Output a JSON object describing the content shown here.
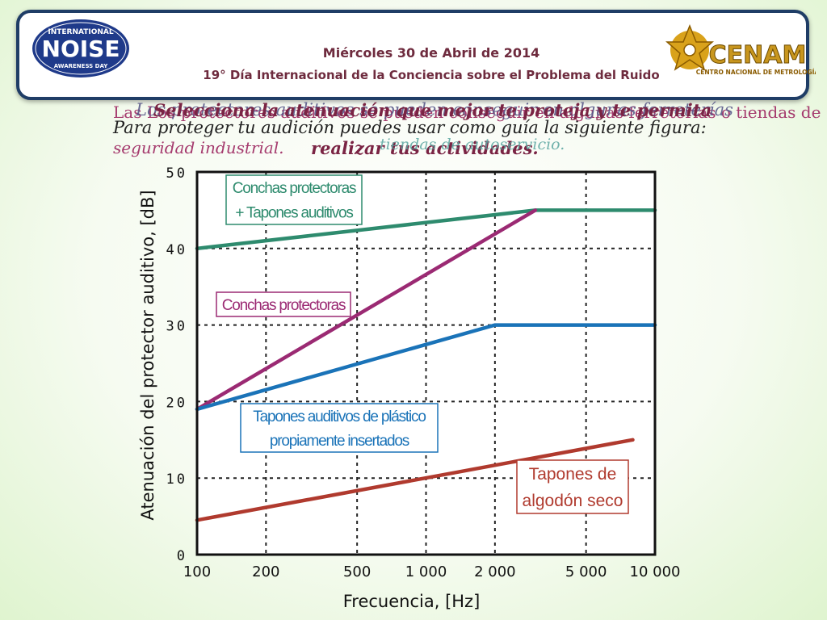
{
  "header": {
    "date": "Miércoles 30 de Abril de 2014",
    "event": "19° Día Internacional de la Conciencia sobre el Problema del Ruido",
    "left_logo": {
      "icon": "noise-awareness-day-logo",
      "lines": [
        "INTERNATIONAL",
        "NOISE",
        "AWARENESS DAY"
      ]
    },
    "right_logo": {
      "icon": "cenam-logo",
      "name": "CENAM",
      "subtitle": "CENTRO NACIONAL DE METROLOGÍA"
    }
  },
  "overlapping_text": {
    "l1": "Las Los protectores auditivos se pueden conseguir en algunas ferreterías o tiendas de",
    "l2": "Los protectores auditivos se pueden conseguir en algunas ferreterías",
    "l3": "Selecciona la atenuación que mejor te proteja y te permita",
    "l4": "Para proteger tu audición puedes usar como guía la siguiente figura:",
    "l5": "seguridad industrial.",
    "l6": "realizar tus actividades.",
    "l7": "tiendas de autoservicio."
  },
  "chart_data": {
    "type": "line",
    "x_scale": "log",
    "xlabel": "Frecuencia, [Hz]",
    "ylabel": "Atenuación del protector  auditivo, [dB]",
    "xlim": [
      100,
      10000
    ],
    "ylim": [
      0,
      50
    ],
    "x_ticks": [
      {
        "value": 100,
        "label": "100"
      },
      {
        "value": 200,
        "label": "200"
      },
      {
        "value": 500,
        "label": "500"
      },
      {
        "value": 1000,
        "label": "1 000"
      },
      {
        "value": 2000,
        "label": "2 000"
      },
      {
        "value": 5000,
        "label": "5 000"
      },
      {
        "value": 10000,
        "label": "10 000"
      }
    ],
    "y_ticks": [
      {
        "value": 0,
        "label": "0"
      },
      {
        "value": 10,
        "label": "10"
      },
      {
        "value": 20,
        "label": "20"
      },
      {
        "value": 30,
        "label": "30"
      },
      {
        "value": 40,
        "label": "40"
      },
      {
        "value": 50,
        "label": "50"
      }
    ],
    "grid": true,
    "series": [
      {
        "label_lines": [
          "Conchas protectoras",
          "+ Tapones auditivos"
        ],
        "color": "#2e8b6e",
        "points": [
          [
            100,
            40
          ],
          [
            3000,
            45
          ],
          [
            10000,
            45
          ]
        ]
      },
      {
        "label_lines": [
          "Conchas protectoras"
        ],
        "color": "#9b2a73",
        "points": [
          [
            100,
            19
          ],
          [
            3000,
            45
          ]
        ]
      },
      {
        "label_lines": [
          "Tapones auditivos de plástico",
          "propiamente insertados"
        ],
        "color": "#1a73b8",
        "points": [
          [
            100,
            19
          ],
          [
            2000,
            30
          ],
          [
            10000,
            30
          ]
        ]
      },
      {
        "label_lines": [
          "Tapones de",
          "algodón seco"
        ],
        "color": "#b03a2e",
        "points": [
          [
            100,
            4.5
          ],
          [
            8000,
            15
          ]
        ]
      }
    ]
  }
}
